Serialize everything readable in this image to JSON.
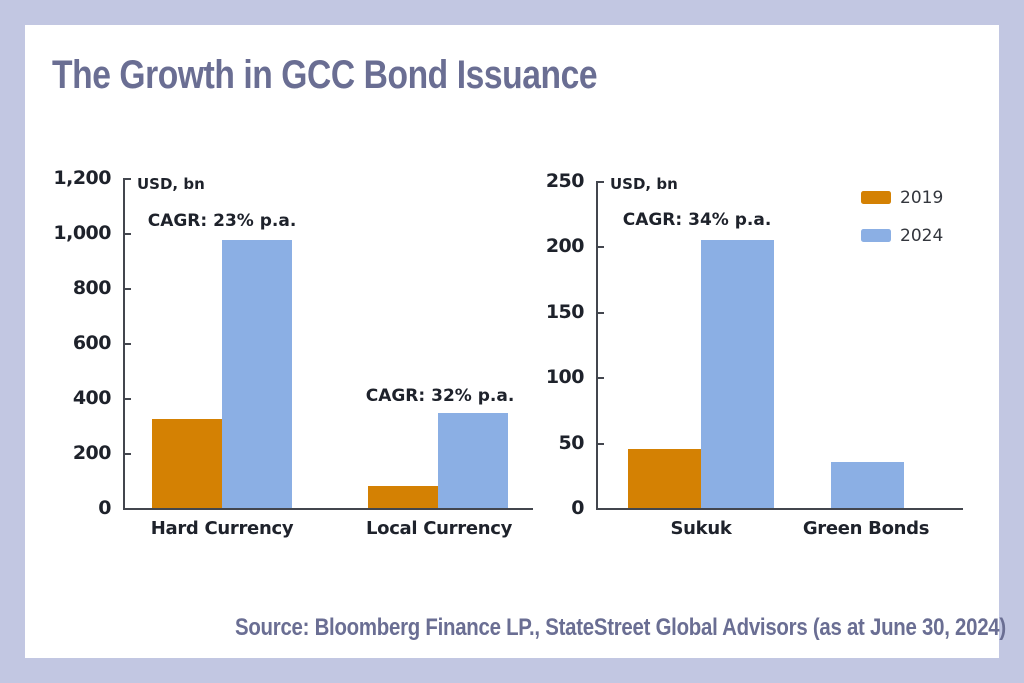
{
  "frame": {
    "background_color": "#c2c7e2",
    "card_color": "#ffffff"
  },
  "title": {
    "text": "The Growth in GCC Bond Issuance",
    "color": "#6a6e93"
  },
  "source": {
    "text": "Source: Bloomberg Finance LP., StateStreet Global Advisors (as at June 30, 2024)",
    "color": "#6a6e93"
  },
  "legend": {
    "position": "top-right",
    "items": [
      {
        "label": "2019",
        "color": "#d48103"
      },
      {
        "label": "2024",
        "color": "#8bafe4"
      }
    ]
  },
  "colors": {
    "bar_2019": "#d48103",
    "bar_2024": "#8bafe4",
    "axis": "#43464e",
    "chart_text": "#1e222b"
  },
  "chart_data": [
    {
      "type": "bar",
      "unit_label": "USD, bn",
      "categories": [
        "Hard Currency",
        "Local Currency"
      ],
      "series": [
        {
          "name": "2019",
          "color": "#d48103",
          "values": [
            325,
            80
          ]
        },
        {
          "name": "2024",
          "color": "#8bafe4",
          "values": [
            975,
            345
          ]
        }
      ],
      "annotations": [
        {
          "text": "CAGR: 23% p.a.",
          "category": "Hard Currency"
        },
        {
          "text": "CAGR: 32% p.a.",
          "category": "Local Currency"
        }
      ],
      "ylabel": "USD, bn",
      "ylim": [
        0,
        1200
      ],
      "ytick_step": 200,
      "ytick_labels": [
        "1,200",
        "1,000",
        "800",
        "600",
        "400",
        "200",
        "0"
      ],
      "grid": false
    },
    {
      "type": "bar",
      "unit_label": "USD, bn",
      "categories": [
        "Sukuk",
        "Green Bonds"
      ],
      "series": [
        {
          "name": "2019",
          "color": "#d48103",
          "values": [
            45,
            null
          ]
        },
        {
          "name": "2024",
          "color": "#8bafe4",
          "values": [
            205,
            35
          ]
        }
      ],
      "annotations": [
        {
          "text": "CAGR: 34% p.a.",
          "category": "Sukuk"
        }
      ],
      "ylabel": "USD, bn",
      "ylim": [
        0,
        250
      ],
      "ytick_step": 50,
      "ytick_labels": [
        "250",
        "200",
        "150",
        "100",
        "50",
        "0"
      ],
      "grid": false
    }
  ]
}
